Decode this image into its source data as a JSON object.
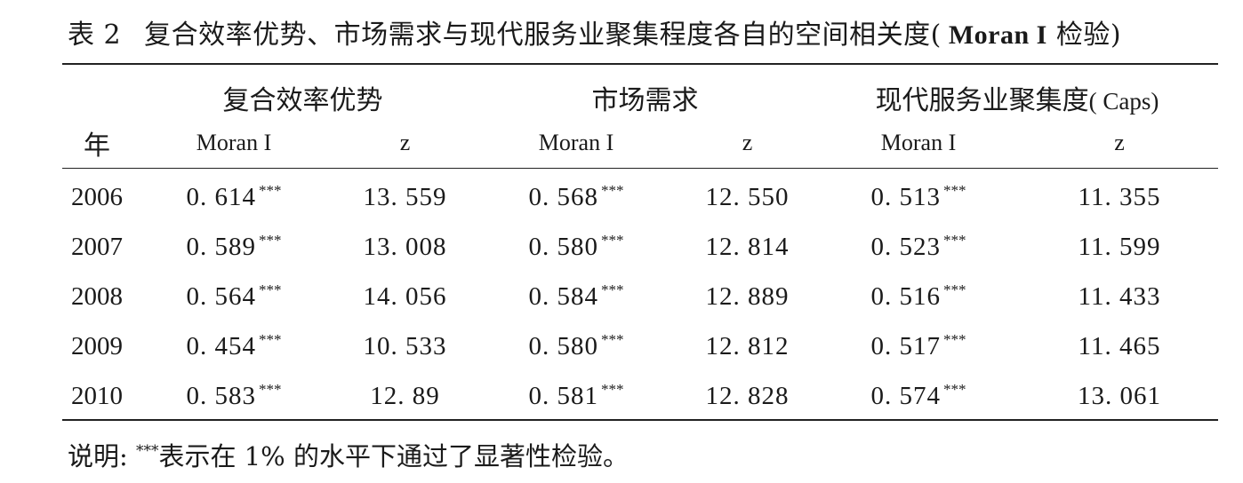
{
  "caption": {
    "number": "表 2",
    "text": "复合效率优势、市场需求与现代服务业聚集程度各自的空间相关度(",
    "bold": " Moran I",
    "tail": " 检验)"
  },
  "header": {
    "groups": [
      "复合效率优势",
      "市场需求",
      "现代服务业聚集度"
    ],
    "group3_suffix": "( Caps)",
    "year": "年",
    "moran": "Moran I",
    "z": "z"
  },
  "rows": [
    {
      "year": "2006",
      "m1": "0. 614",
      "s1": "***",
      "z1": "13. 559",
      "m2": "0. 568",
      "s2": "***",
      "z2": "12. 550",
      "m3": "0. 513",
      "s3": "***",
      "z3": "11. 355"
    },
    {
      "year": "2007",
      "m1": "0. 589",
      "s1": "***",
      "z1": "13. 008",
      "m2": "0. 580",
      "s2": "***",
      "z2": "12. 814",
      "m3": "0. 523",
      "s3": "***",
      "z3": "11. 599"
    },
    {
      "year": "2008",
      "m1": "0. 564",
      "s1": "***",
      "z1": "14. 056",
      "m2": "0. 584",
      "s2": "***",
      "z2": "12. 889",
      "m3": "0. 516",
      "s3": "***",
      "z3": "11. 433"
    },
    {
      "year": "2009",
      "m1": "0. 454",
      "s1": "***",
      "z1": "10. 533",
      "m2": "0. 580",
      "s2": "***",
      "z2": "12. 812",
      "m3": "0. 517",
      "s3": "***",
      "z3": "11. 465"
    },
    {
      "year": "2010",
      "m1": "0. 583",
      "s1": "***",
      "z1": "12. 89",
      "m2": "0. 581",
      "s2": "***",
      "z2": "12. 828",
      "m3": "0. 574",
      "s3": "***",
      "z3": "13. 061"
    }
  ],
  "note": {
    "prefix": "说明: ",
    "stars": "***",
    "text": "表示在 1% 的水平下通过了显著性检验。"
  }
}
